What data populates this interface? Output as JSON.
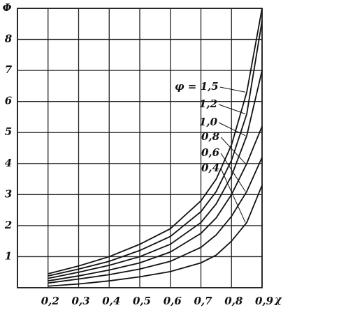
{
  "chart_data": {
    "type": "line",
    "x_label": "χ",
    "y_label": "Φ",
    "x": [
      0.2,
      0.3,
      0.4,
      0.5,
      0.6,
      0.7,
      0.75,
      0.8,
      0.85,
      0.9
    ],
    "series": [
      {
        "name": "φ = 1,5",
        "color": "#111",
        "values": [
          0.45,
          0.7,
          1.0,
          1.4,
          1.9,
          2.8,
          3.5,
          4.6,
          6.3,
          9.0
        ]
      },
      {
        "name": "1,2",
        "color": "#111",
        "values": [
          0.38,
          0.6,
          0.85,
          1.2,
          1.65,
          2.45,
          3.1,
          4.1,
          5.6,
          8.6
        ]
      },
      {
        "name": "1,0",
        "color": "#111",
        "values": [
          0.3,
          0.5,
          0.72,
          1.0,
          1.4,
          2.1,
          2.7,
          3.6,
          4.9,
          7.0
        ]
      },
      {
        "name": "0,8",
        "color": "#111",
        "values": [
          0.22,
          0.38,
          0.57,
          0.8,
          1.15,
          1.75,
          2.25,
          3.0,
          4.0,
          5.2
        ]
      },
      {
        "name": "0,6",
        "color": "#111",
        "values": [
          0.15,
          0.28,
          0.42,
          0.6,
          0.85,
          1.3,
          1.7,
          2.3,
          3.1,
          4.2
        ]
      },
      {
        "name": "0,4",
        "color": "#111",
        "values": [
          0.05,
          0.12,
          0.22,
          0.35,
          0.52,
          0.8,
          1.05,
          1.5,
          2.1,
          3.3
        ]
      }
    ],
    "xlim": [
      0.1,
      0.9
    ],
    "ylim": [
      0,
      9
    ],
    "xticks": [
      {
        "value": 0.2,
        "label": "0,2"
      },
      {
        "value": 0.3,
        "label": "0,3"
      },
      {
        "value": 0.4,
        "label": "0,4"
      },
      {
        "value": 0.5,
        "label": "0,5"
      },
      {
        "value": 0.6,
        "label": "0,6"
      },
      {
        "value": 0.7,
        "label": "0,7"
      },
      {
        "value": 0.8,
        "label": "0,8"
      },
      {
        "value": 0.9,
        "label": "0,9"
      }
    ],
    "yticks": [
      1,
      2,
      3,
      4,
      5,
      6,
      7,
      8
    ],
    "grid": true
  }
}
